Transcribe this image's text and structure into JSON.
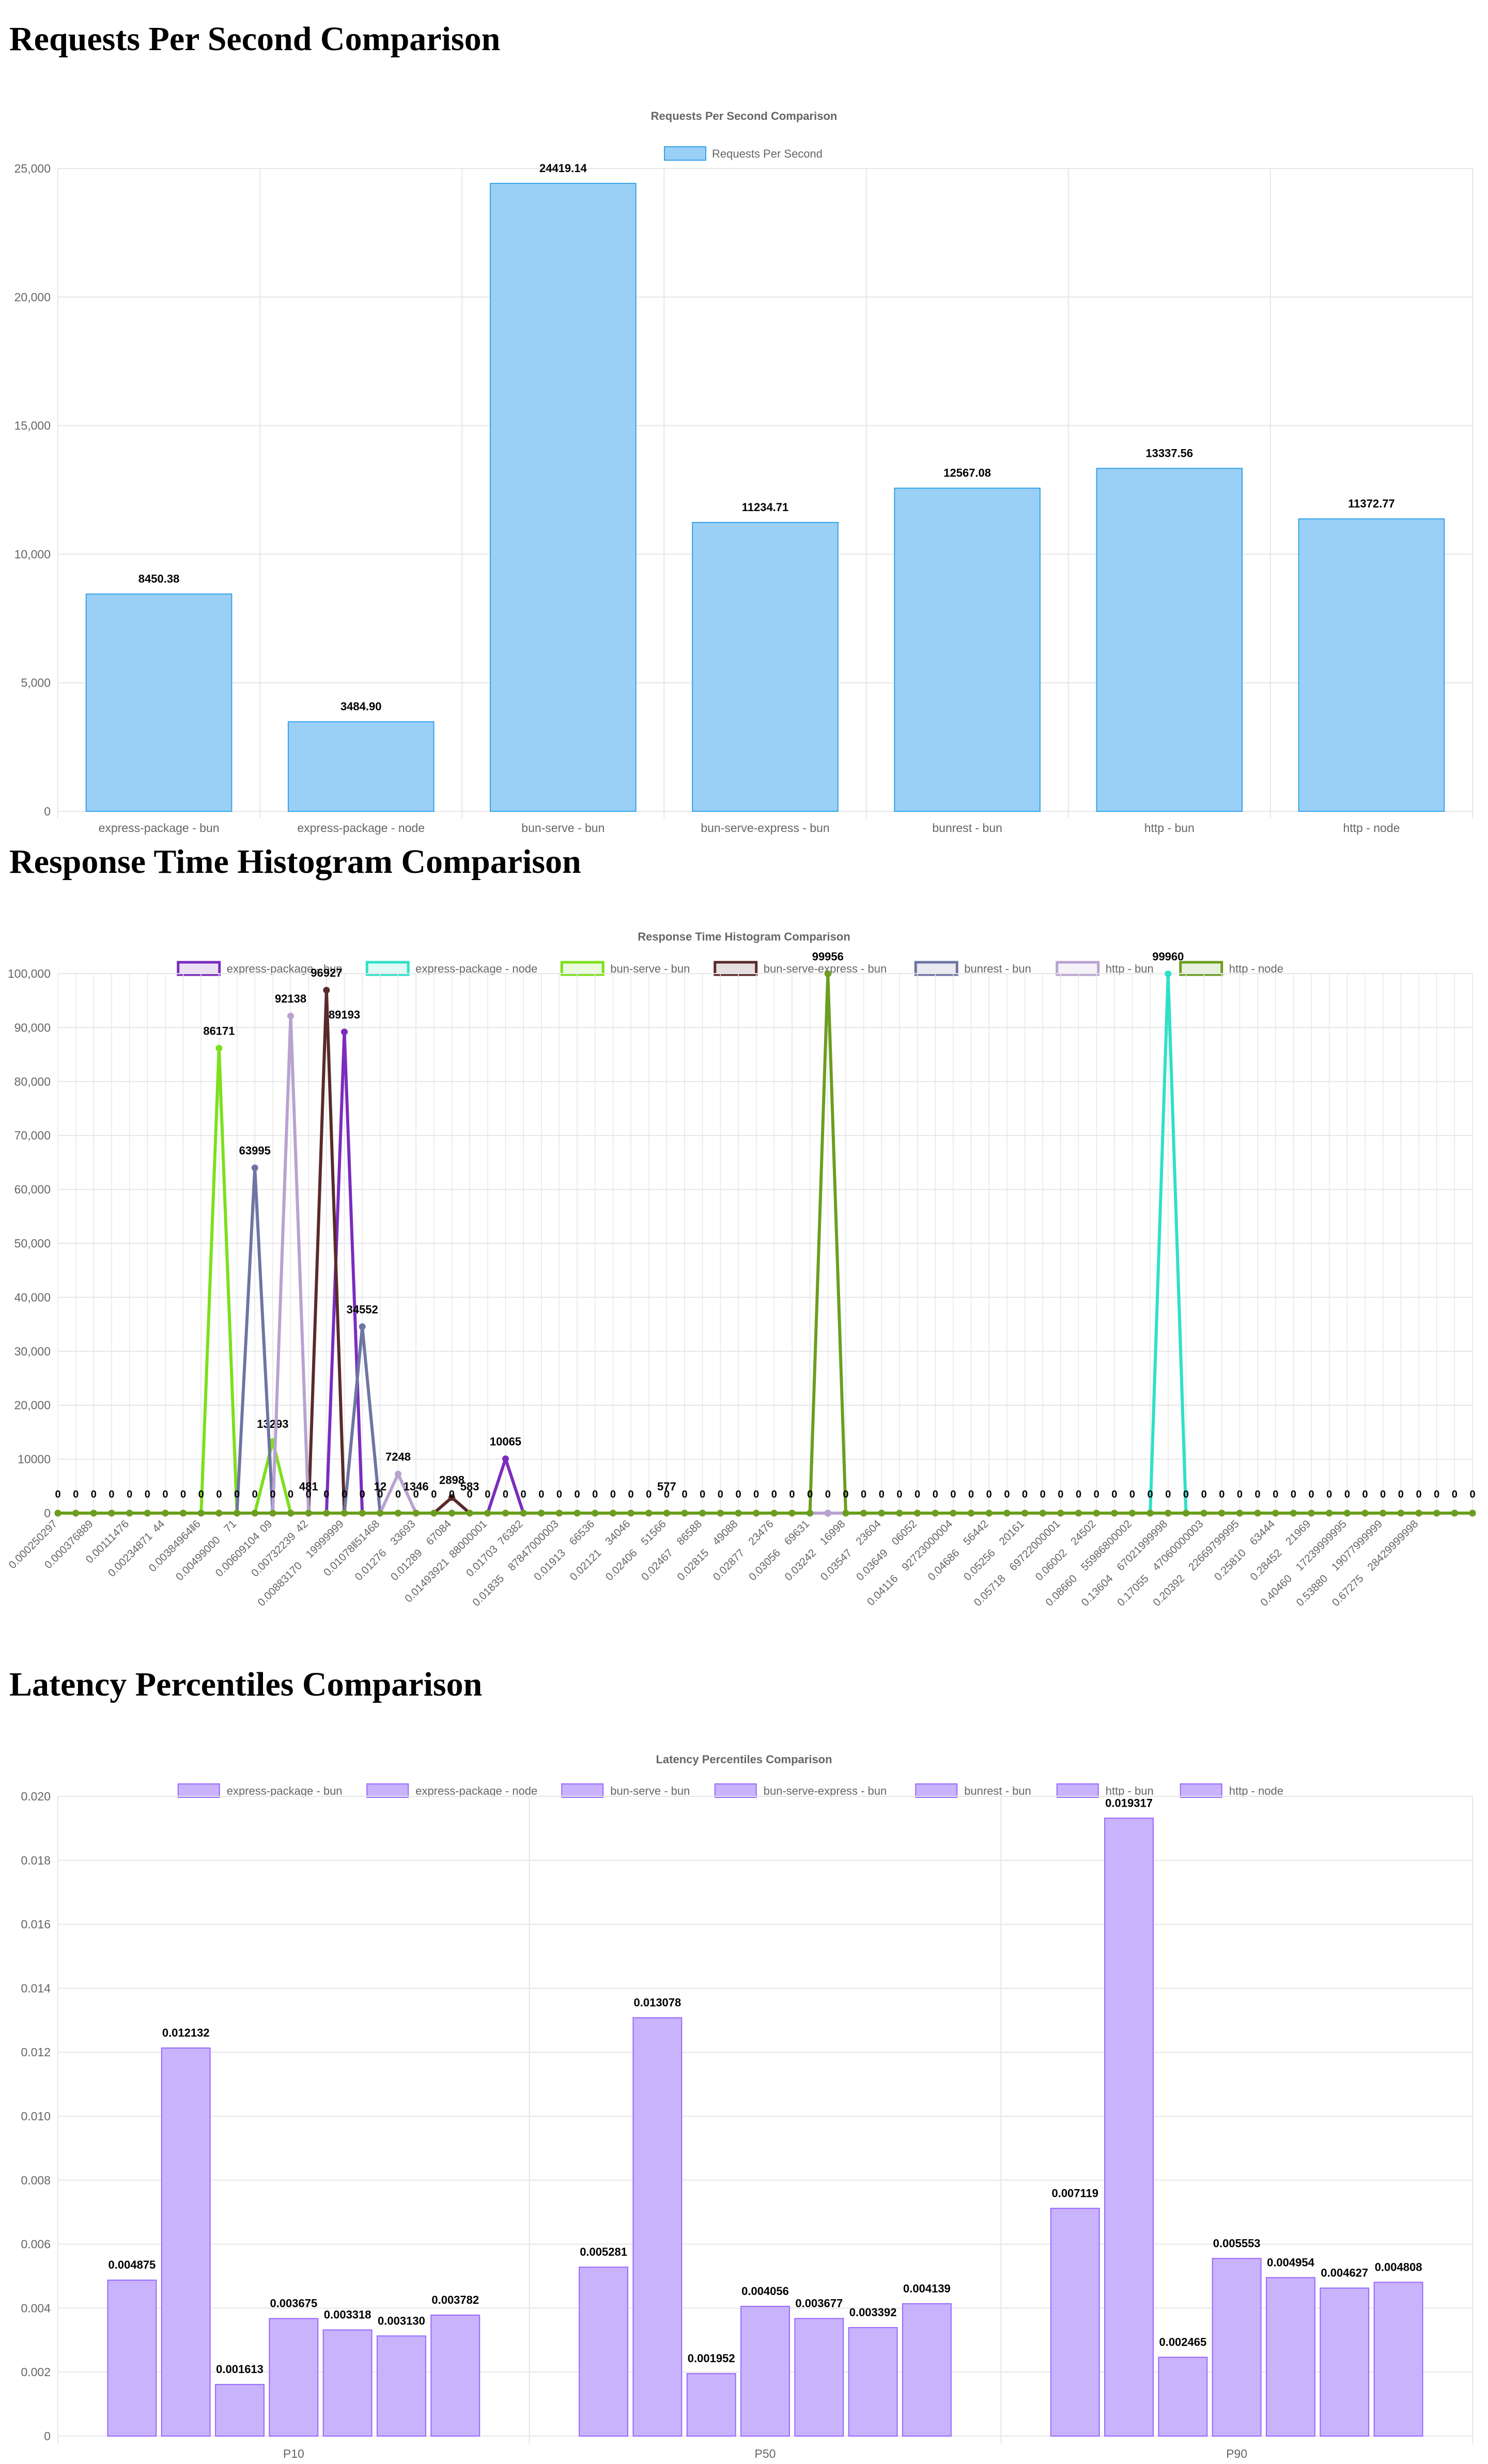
{
  "colors": {
    "rps_bar": "#9AD0F5",
    "rps_border": "#36A2EB",
    "latency_bar": "#C9B3FC",
    "latency_border": "#9966FF",
    "grid": "#E6E6E6",
    "tick_text": "#666666"
  },
  "sections": {
    "rps_heading": "Requests Per Second Comparison",
    "histogram_heading": "Response Time Histogram Comparison",
    "latency_heading": "Latency Percentiles Comparison"
  },
  "chart_data": [
    {
      "type": "bar",
      "title": "Requests Per Second Comparison",
      "categories": [
        "express-package - bun",
        "express-package - node",
        "bun-serve - bun",
        "bun-serve-express - bun",
        "bunrest - bun",
        "http - bun",
        "http - node"
      ],
      "series": [
        {
          "name": "Requests Per Second",
          "values": [
            8450.38,
            3484.9,
            24419.14,
            11234.71,
            12567.08,
            13337.56,
            11372.77
          ]
        }
      ],
      "data_labels": [
        "8450.38",
        "3484.90",
        "24419.14",
        "11234.71",
        "12567.08",
        "13337.56",
        "11372.77"
      ],
      "ylim": [
        0,
        25000
      ],
      "yticks": [
        "0",
        "5,000",
        "10,000",
        "15,000",
        "20,000",
        "25,000"
      ],
      "grid": true,
      "legend": "top"
    },
    {
      "type": "line",
      "title": "Response Time Histogram Comparison",
      "x_tick_labels": [
        "0.000250297",
        "0.000376889",
        "0.00111476",
        "0.00234871 44",
        "0.00384964‖6",
        "0.00499000 71",
        "0.00609104 09",
        "0.00732239 42",
        "0.00883170 19999999",
        "0.01078‖51468",
        "0.01276 33693",
        "0.01289 67084",
        "0.01493921 88000001",
        "0.01703 76382",
        "0.01835 87847000003",
        "0.01913 66536",
        "0.02121 34046",
        "0.02406 51566",
        "0.02467 86588",
        "0.02815 49088",
        "0.02877 23476",
        "0.03056 69631",
        "0.03242 16998",
        "0.03547 23604",
        "0.03649 06052",
        "0.04116 92723000004",
        "0.04686 56442",
        "0.05256 20161",
        "0.05718 69722000001",
        "0.06002 24502",
        "0.08660 55986800002",
        "0.13604 67021999998",
        "0.17055 47060000003",
        "0.20392 22669799995",
        "0.25810 63444",
        "0.28452 21969",
        "0.40460 17239999995",
        "0.53880 19077999999",
        "0.67275 28429999998"
      ],
      "ylim": [
        0,
        100000
      ],
      "yticks": [
        "0",
        "10000",
        "20,000",
        "30,000",
        "40,000",
        "50,000",
        "60,000",
        "70,000",
        "80,000",
        "90,000",
        "100,000"
      ],
      "series": [
        {
          "name": "express-package - bun",
          "color": "#7B2CBF",
          "peaks": [
            [
              16,
              89193
            ],
            [
              25,
              10065
            ]
          ]
        },
        {
          "name": "express-package - node",
          "color": "#2FE0C8",
          "peaks": [
            [
              62,
              99960
            ]
          ]
        },
        {
          "name": "bun-serve - bun",
          "color": "#7CE01A",
          "peaks": [
            [
              9,
              86171
            ],
            [
              12,
              13293
            ]
          ]
        },
        {
          "name": "bun-serve-express - bun",
          "color": "#5A2A2A",
          "peaks": [
            [
              15,
              96927
            ],
            [
              22,
              2898
            ]
          ]
        },
        {
          "name": "bunrest - bun",
          "color": "#6E75A3",
          "peaks": [
            [
              11,
              63995
            ],
            [
              17,
              34552
            ]
          ]
        },
        {
          "name": "http - bun",
          "color": "#B8A2D0",
          "peaks": [
            [
              13,
              92138
            ],
            [
              19,
              7248
            ]
          ]
        },
        {
          "name": "http - node",
          "color": "#6B9E1F",
          "peaks": [
            [
              43,
              99956
            ]
          ]
        }
      ],
      "data_labels": [
        "86171",
        "63995",
        "13293",
        "92138",
        "96927",
        "89193",
        "34552",
        "7248",
        "2898",
        "10065",
        "99956",
        "99960",
        "1346",
        "583",
        "481",
        "12",
        "577"
      ],
      "grid": true,
      "legend": "top"
    },
    {
      "type": "bar",
      "title": "Latency Percentiles Comparison",
      "categories": [
        "P10",
        "P50",
        "P90"
      ],
      "series": [
        {
          "name": "express-package - bun",
          "values": [
            0.004875,
            0.005281,
            0.007119
          ]
        },
        {
          "name": "express-package - node",
          "values": [
            0.012132,
            0.013078,
            0.019317
          ]
        },
        {
          "name": "bun-serve - bun",
          "values": [
            0.001613,
            0.001952,
            0.002465
          ]
        },
        {
          "name": "bun-serve-express - bun",
          "values": [
            0.003675,
            0.004056,
            0.005553
          ]
        },
        {
          "name": "bunrest - bun",
          "values": [
            0.003318,
            0.003677,
            0.004954
          ]
        },
        {
          "name": "http - bun",
          "values": [
            0.00313,
            0.003392,
            0.004627
          ]
        },
        {
          "name": "http - node",
          "values": [
            0.003782,
            0.004139,
            0.004808
          ]
        }
      ],
      "data_labels": [
        [
          "0.004875",
          "0.005281",
          "0.007119"
        ],
        [
          "0.012132",
          "0.013078",
          "0.019317"
        ],
        [
          "0.001613",
          "0.001952",
          "0.002465"
        ],
        [
          "0.003675",
          "0.004056",
          "0.005553"
        ],
        [
          "0.003318",
          "0.003677",
          "0.004954"
        ],
        [
          "0.003130",
          "0.003392",
          "0.004627"
        ],
        [
          "0.003782",
          "0.004139",
          "0.004808"
        ]
      ],
      "ylim": [
        0,
        0.02
      ],
      "yticks": [
        "0",
        "0.002",
        "0.004",
        "0.006",
        "0.008",
        "0.010",
        "0.012",
        "0.014",
        "0.016",
        "0.018",
        "0.020"
      ],
      "grid": true,
      "legend": "top"
    }
  ]
}
